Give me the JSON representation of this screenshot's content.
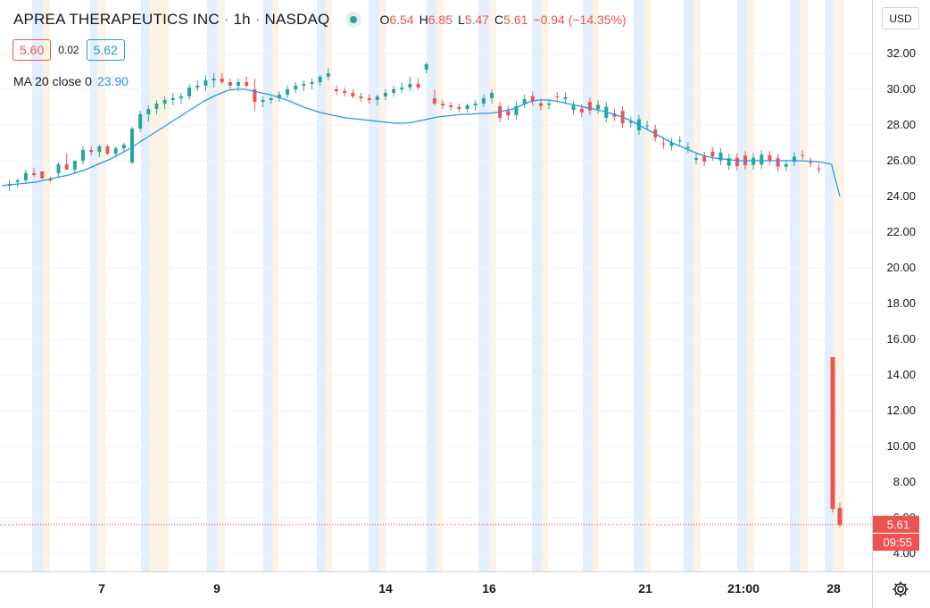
{
  "header": {
    "symbol_name": "APREA THERAPEUTICS INC",
    "interval": "1h",
    "exchange": "NASDAQ",
    "separator": "·",
    "ohlc": {
      "o_label": "O",
      "o_value": "6.54",
      "h_label": "H",
      "h_value": "6.85",
      "l_label": "L",
      "l_value": "5.47",
      "c_label": "C",
      "c_value": "5.61",
      "change": "−0.94 (−14.35%)"
    },
    "status_color": "#26a69a"
  },
  "quote": {
    "bid": "5.60",
    "spread": "0.02",
    "ask": "5.62"
  },
  "indicator": {
    "label": "MA 20 close 0",
    "value": "23.90"
  },
  "currency_button": "USD",
  "price_axis": {
    "ticks": [
      "32.00",
      "30.00",
      "28.00",
      "26.00",
      "24.00",
      "22.00",
      "20.00",
      "18.00",
      "16.00",
      "14.00",
      "12.00",
      "10.00",
      "8.00",
      "6.00",
      "4.00"
    ],
    "last_price_label": "5.61",
    "countdown_label": "09:55"
  },
  "time_axis": {
    "labels": [
      "7",
      "9",
      "14",
      "16",
      "21",
      "21:00",
      "28"
    ]
  },
  "colors": {
    "up": "#26a69a",
    "down": "#ef5350",
    "ma": "#2196f3",
    "grid": "#f0f3fa",
    "premarket": "#e3effd",
    "postmarket": "#fdf3e5"
  },
  "icons": {
    "settings": "gear-icon",
    "status": "live-dot-icon"
  },
  "chart_data": {
    "type": "candlestick",
    "title": "APREA THERAPEUTICS INC · 1h · NASDAQ",
    "ylim": [
      3,
      33.5
    ],
    "y_ticks": [
      4,
      6,
      8,
      10,
      12,
      14,
      16,
      18,
      20,
      22,
      24,
      26,
      28,
      30,
      32
    ],
    "x_tick_labels": [
      "7",
      "9",
      "14",
      "16",
      "21",
      "21:00",
      "28"
    ],
    "last_price": 5.61,
    "series": [
      {
        "name": "MA 20 close 0",
        "type": "line",
        "values": [
          24.6,
          24.65,
          24.7,
          24.75,
          24.8,
          24.9,
          25.0,
          25.1,
          25.2,
          25.35,
          25.5,
          25.7,
          25.9,
          26.1,
          26.35,
          26.6,
          26.9,
          27.2,
          27.5,
          27.8,
          28.1,
          28.4,
          28.7,
          29.0,
          29.3,
          29.55,
          29.75,
          29.95,
          30.0,
          30.0,
          29.9,
          29.8,
          29.7,
          29.55,
          29.4,
          29.2,
          29.0,
          28.85,
          28.7,
          28.6,
          28.5,
          28.4,
          28.35,
          28.3,
          28.25,
          28.2,
          28.15,
          28.1,
          28.1,
          28.15,
          28.25,
          28.35,
          28.45,
          28.5,
          28.55,
          28.6,
          28.6,
          28.65,
          28.65,
          28.7,
          28.8,
          28.9,
          29.1,
          29.3,
          29.4,
          29.4,
          29.35,
          29.25,
          29.15,
          29.05,
          28.95,
          28.85,
          28.75,
          28.6,
          28.45,
          28.25,
          28.0,
          27.75,
          27.5,
          27.25,
          27.0,
          26.8,
          26.6,
          26.4,
          26.25,
          26.15,
          26.1,
          26.05,
          26.0,
          26.0,
          26.0,
          26.0,
          26.0,
          26.0,
          26.0,
          26.0,
          25.98,
          25.95,
          25.9,
          25.8,
          24.0
        ]
      }
    ],
    "candles_ohlc": [
      [
        24.6,
        24.9,
        24.3,
        24.7
      ],
      [
        24.8,
        25.0,
        24.5,
        24.9
      ],
      [
        24.9,
        25.5,
        24.7,
        25.3
      ],
      [
        25.3,
        25.6,
        25.1,
        25.2
      ],
      [
        25.4,
        25.4,
        25.0,
        25.0
      ],
      [
        25.0,
        25.1,
        24.8,
        24.9
      ],
      [
        25.3,
        25.9,
        25.1,
        25.8
      ],
      [
        25.8,
        26.4,
        25.6,
        25.5
      ],
      [
        25.5,
        25.9,
        25.3,
        26.0
      ],
      [
        26.0,
        26.8,
        25.8,
        26.6
      ],
      [
        26.6,
        26.8,
        26.3,
        26.5
      ],
      [
        26.5,
        26.9,
        26.2,
        26.8
      ],
      [
        26.8,
        26.9,
        26.3,
        26.4
      ],
      [
        26.4,
        26.8,
        26.2,
        26.7
      ],
      [
        26.7,
        27.0,
        26.5,
        26.9
      ],
      [
        25.9,
        27.9,
        25.8,
        27.8
      ],
      [
        27.8,
        28.8,
        27.6,
        28.6
      ],
      [
        28.6,
        29.1,
        28.2,
        28.9
      ],
      [
        28.9,
        29.4,
        28.6,
        29.2
      ],
      [
        29.2,
        29.6,
        28.9,
        29.4
      ],
      [
        29.4,
        29.8,
        29.1,
        29.5
      ],
      [
        29.5,
        29.8,
        29.2,
        29.6
      ],
      [
        29.6,
        30.3,
        29.4,
        30.1
      ],
      [
        30.1,
        30.5,
        29.9,
        30.2
      ],
      [
        30.2,
        30.8,
        29.9,
        30.5
      ],
      [
        30.5,
        30.9,
        30.1,
        30.6
      ],
      [
        30.6,
        30.9,
        30.3,
        30.4
      ],
      [
        30.4,
        30.6,
        30.0,
        30.2
      ],
      [
        30.2,
        30.6,
        29.9,
        30.4
      ],
      [
        30.4,
        30.7,
        30.1,
        30.2
      ],
      [
        30.0,
        30.6,
        28.8,
        29.3
      ],
      [
        29.3,
        29.6,
        29.0,
        29.4
      ],
      [
        29.4,
        29.6,
        29.2,
        29.5
      ],
      [
        29.5,
        29.9,
        29.3,
        29.7
      ],
      [
        29.7,
        30.2,
        29.5,
        30.0
      ],
      [
        30.0,
        30.4,
        29.8,
        30.2
      ],
      [
        30.2,
        30.5,
        29.9,
        30.3
      ],
      [
        30.3,
        30.6,
        30.0,
        30.4
      ],
      [
        30.4,
        30.8,
        30.2,
        30.7
      ],
      [
        30.7,
        31.2,
        30.5,
        30.9
      ],
      [
        30.0,
        30.2,
        29.7,
        29.9
      ],
      [
        29.9,
        30.1,
        29.6,
        29.8
      ],
      [
        29.8,
        30.0,
        29.5,
        29.6
      ],
      [
        29.6,
        29.8,
        29.3,
        29.5
      ],
      [
        29.5,
        29.7,
        29.2,
        29.4
      ],
      [
        29.4,
        29.7,
        29.1,
        29.6
      ],
      [
        29.6,
        30.0,
        29.4,
        29.8
      ],
      [
        29.8,
        30.2,
        29.6,
        30.0
      ],
      [
        30.0,
        30.4,
        29.8,
        30.1
      ],
      [
        30.1,
        30.7,
        29.9,
        30.3
      ],
      [
        30.3,
        30.6,
        30.0,
        30.1
      ],
      [
        31.1,
        31.5,
        30.9,
        31.4
      ],
      [
        29.5,
        30.0,
        29.1,
        29.2
      ],
      [
        29.2,
        29.4,
        28.9,
        29.1
      ],
      [
        29.1,
        29.3,
        28.8,
        29.0
      ],
      [
        29.0,
        29.2,
        28.7,
        28.9
      ],
      [
        28.9,
        29.2,
        28.7,
        29.1
      ],
      [
        29.1,
        29.4,
        28.8,
        29.2
      ],
      [
        29.2,
        29.7,
        29.0,
        29.5
      ],
      [
        29.5,
        30.0,
        29.2,
        29.8
      ]
    ],
    "note_values": "candlesticks: 1h bars, oldest to newest; visible session jump down to ~15.0 then ~6.5 and last close 5.61",
    "final_candles": [
      {
        "open": 15.0,
        "high": 15.0,
        "low": 6.3,
        "close": 6.5
      },
      {
        "open": 6.54,
        "high": 6.85,
        "low": 5.47,
        "close": 5.61
      }
    ],
    "grid": true,
    "legend": "top-left"
  }
}
